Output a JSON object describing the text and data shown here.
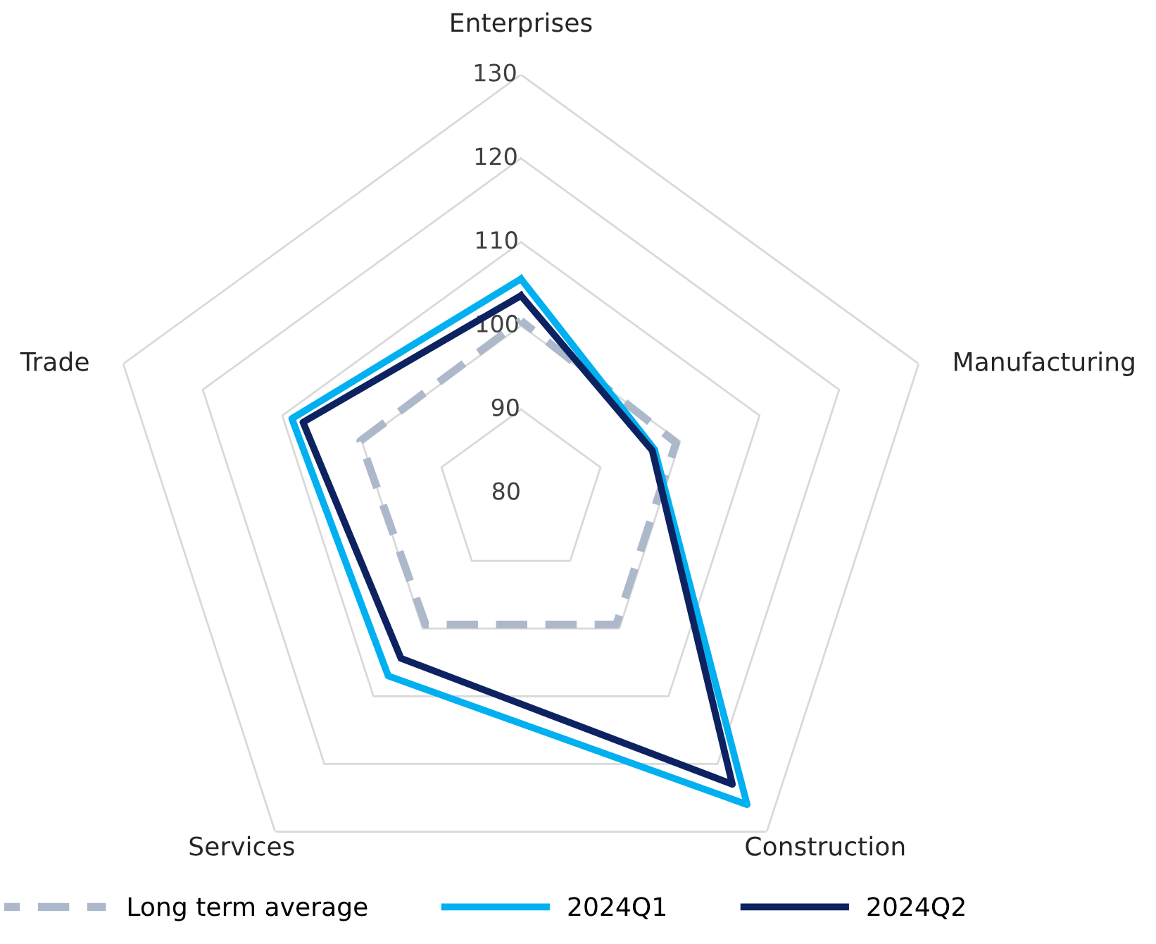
{
  "chart_data": {
    "type": "radar",
    "categories": [
      "Enterprises",
      "Manufacturing",
      "Construction",
      "Services",
      "Trade"
    ],
    "series": [
      {
        "name": "Long term average",
        "color": "#adb9ca",
        "line_style": "dashed",
        "values": [
          100.6,
          99.5,
          99.4,
          99.4,
          100.2
        ]
      },
      {
        "name": "2024Q1",
        "color": "#00b0f0",
        "line_style": "solid",
        "values": [
          105.6,
          96.8,
          126,
          107,
          108.8
        ]
      },
      {
        "name": "2024Q2",
        "color": "#0d2260",
        "line_style": "solid",
        "values": [
          103.6,
          96.5,
          123,
          104.4,
          107.4
        ]
      }
    ],
    "ylim": [
      80,
      130
    ],
    "yticks": [
      80,
      90,
      100,
      110,
      120,
      130
    ],
    "grid": true,
    "legend": "bottom",
    "marker": "none"
  }
}
